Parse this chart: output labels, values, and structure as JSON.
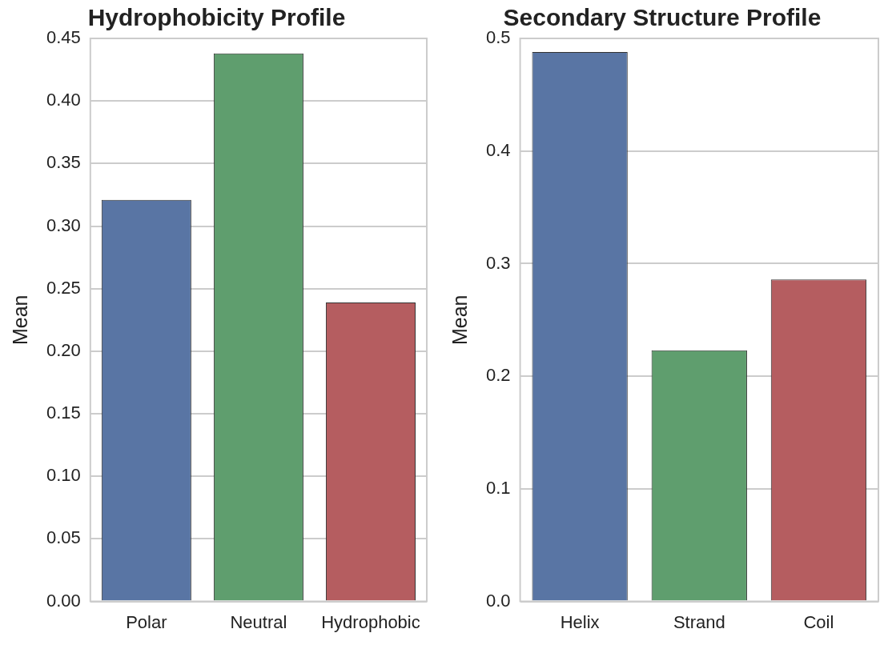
{
  "chart_data": [
    {
      "type": "bar",
      "title": "Hydrophobicity Profile",
      "ylabel": "Mean",
      "categories": [
        "Polar",
        "Neutral",
        "Hydrophobic"
      ],
      "values": [
        0.321,
        0.438,
        0.239
      ],
      "colors": [
        "#5975a4",
        "#5f9e6e",
        "#b55d60"
      ],
      "ylim": [
        0,
        0.45
      ],
      "yticks": [
        {
          "value": 0,
          "label": "0.00"
        },
        {
          "value": 0.05,
          "label": "0.05"
        },
        {
          "value": 0.1,
          "label": "0.10"
        },
        {
          "value": 0.15,
          "label": "0.15"
        },
        {
          "value": 0.2,
          "label": "0.20"
        },
        {
          "value": 0.25,
          "label": "0.25"
        },
        {
          "value": 0.3,
          "label": "0.30"
        },
        {
          "value": 0.35,
          "label": "0.35"
        },
        {
          "value": 0.4,
          "label": "0.40"
        },
        {
          "value": 0.45,
          "label": "0.45"
        }
      ],
      "grid": "y"
    },
    {
      "type": "bar",
      "title": "Secondary Structure Profile",
      "ylabel": "Mean",
      "categories": [
        "Helix",
        "Strand",
        "Coil"
      ],
      "values": [
        0.488,
        0.223,
        0.286
      ],
      "colors": [
        "#5975a4",
        "#5f9e6e",
        "#b55d60"
      ],
      "ylim": [
        0,
        0.5
      ],
      "yticks": [
        {
          "value": 0,
          "label": "0.0"
        },
        {
          "value": 0.1,
          "label": "0.1"
        },
        {
          "value": 0.2,
          "label": "0.2"
        },
        {
          "value": 0.3,
          "label": "0.3"
        },
        {
          "value": 0.4,
          "label": "0.4"
        },
        {
          "value": 0.5,
          "label": "0.5"
        }
      ],
      "grid": "y"
    }
  ]
}
